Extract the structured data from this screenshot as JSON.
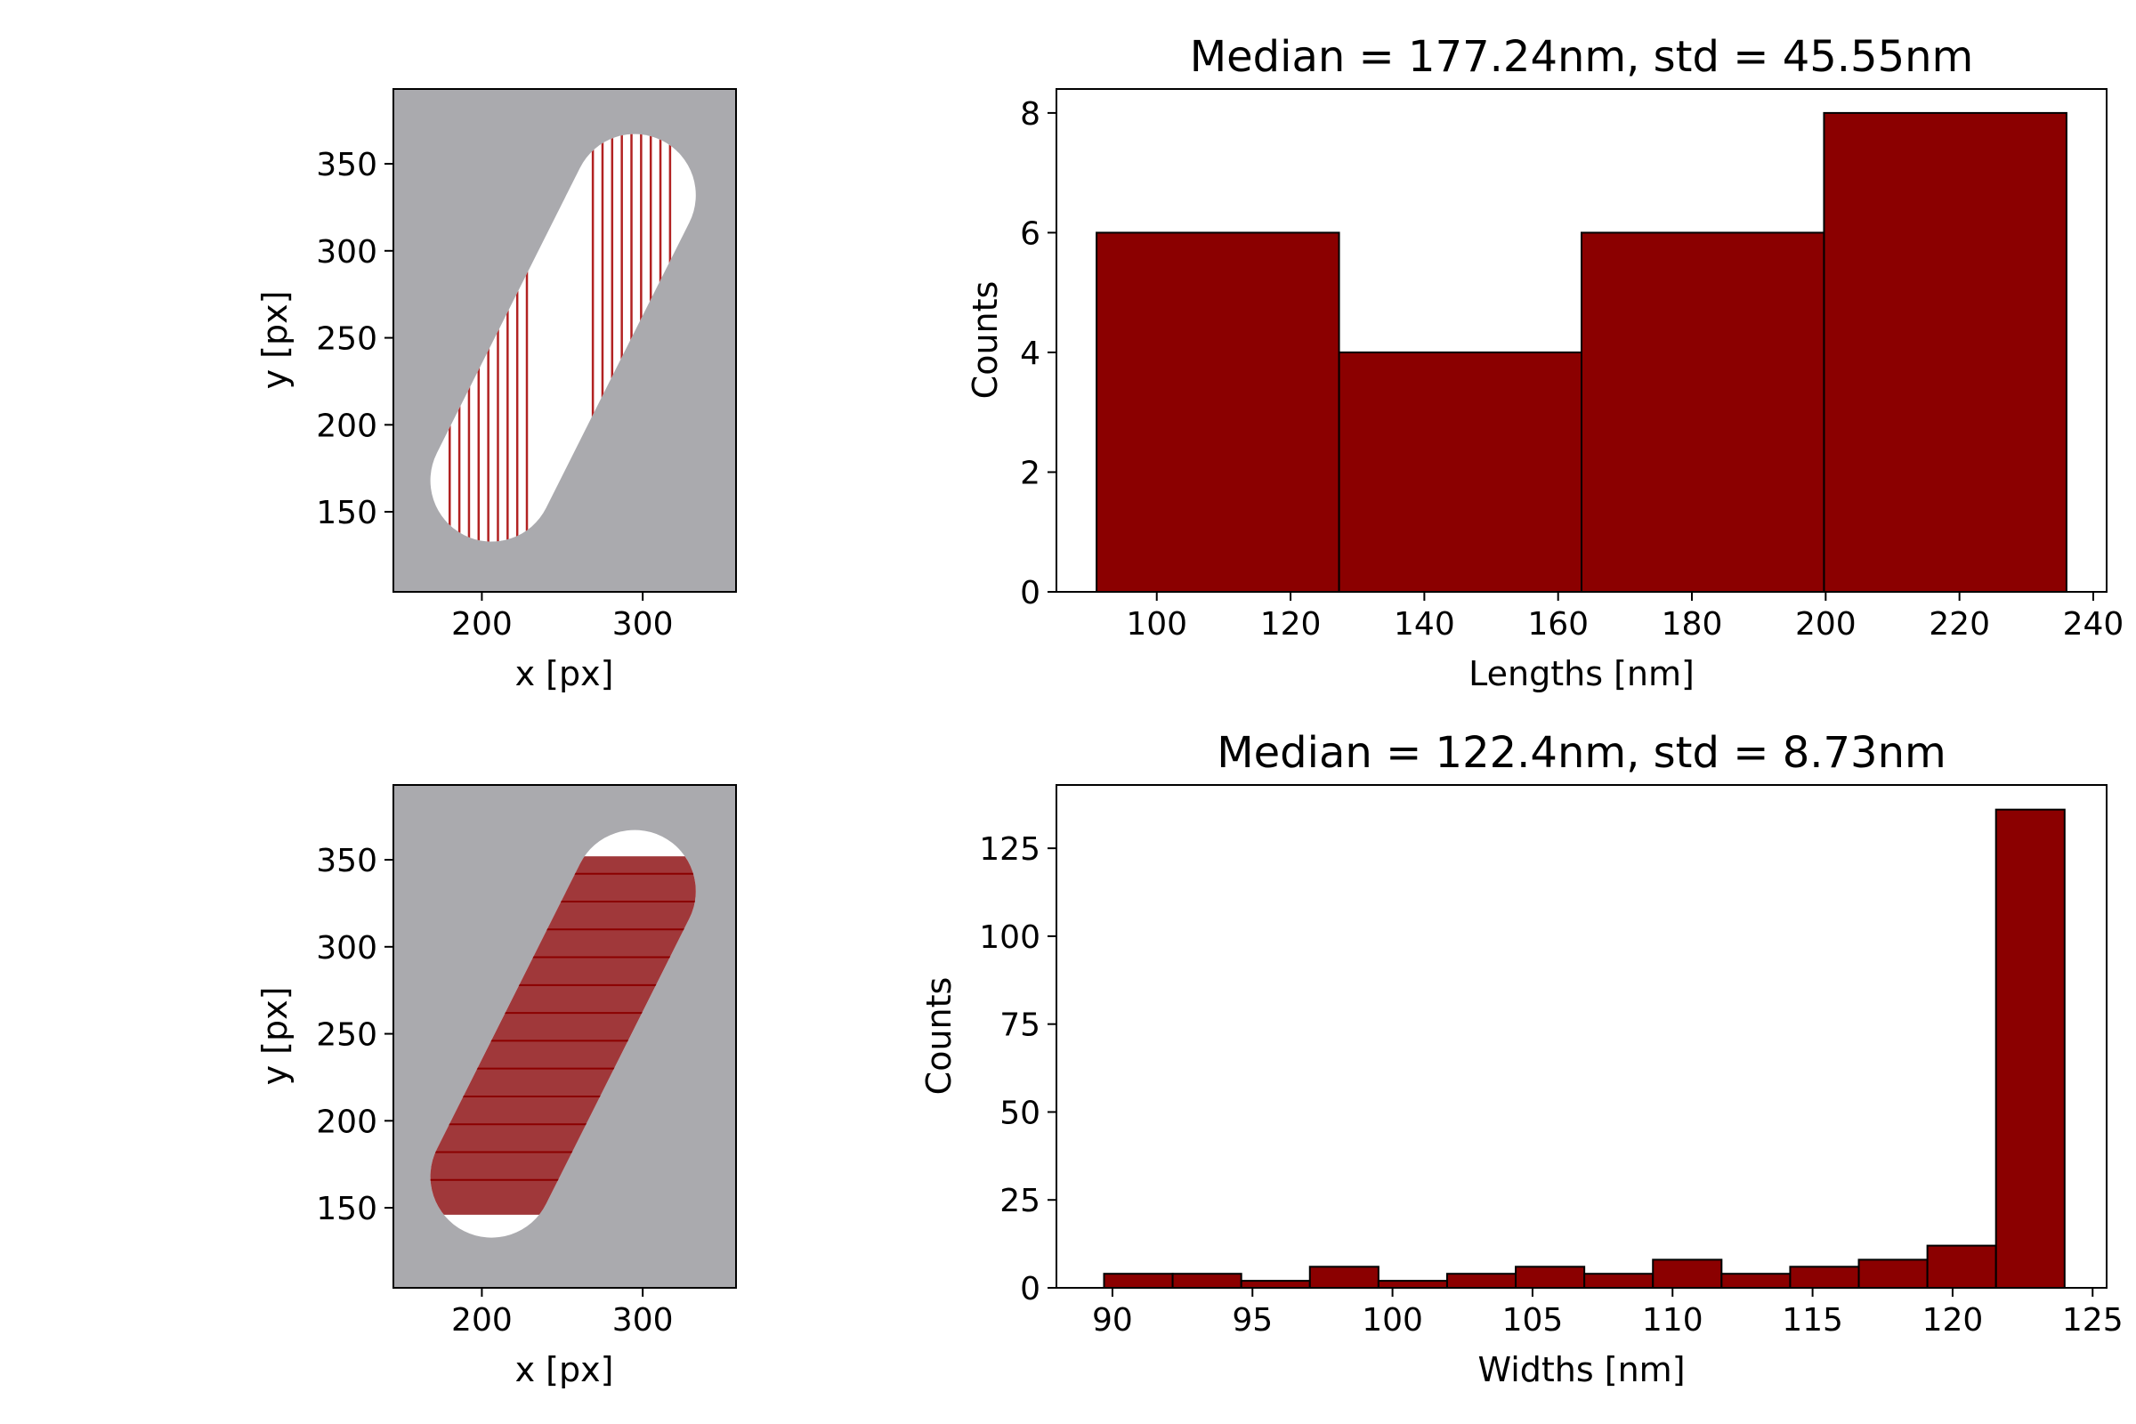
{
  "chart_data": [
    {
      "type": "image",
      "panel": "top-left",
      "xlabel": "x [px]",
      "ylabel": "y [px]",
      "xlim": [
        145,
        358
      ],
      "ylim": [
        104,
        393
      ],
      "xticks": [
        200,
        300
      ],
      "yticks": [
        150,
        200,
        250,
        300,
        350
      ],
      "colors": {
        "background": "#aaaaae",
        "shape": "#ffffff",
        "lines": "#b22222"
      },
      "shape": {
        "kind": "capsule",
        "start": [
          206,
          168
        ],
        "end": [
          295,
          332
        ],
        "radius": 38
      },
      "lines": {
        "orientation": "vertical",
        "left_x": [
          180,
          186,
          192,
          198,
          204,
          210,
          216,
          222,
          228
        ],
        "right_x": [
          269,
          275,
          281,
          287,
          293,
          299,
          305,
          311,
          317
        ]
      }
    },
    {
      "type": "bar",
      "panel": "top-right",
      "title": "Median = 177.24nm, std = 45.55nm",
      "xlabel": "Lengths [nm]",
      "ylabel": "Counts",
      "bin_edges": [
        91,
        127.25,
        163.5,
        199.75,
        236
      ],
      "values": [
        6,
        4,
        6,
        8
      ],
      "xlim": [
        85,
        242
      ],
      "ylim": [
        0,
        8.4
      ],
      "xticks": [
        100,
        120,
        140,
        160,
        180,
        200,
        220,
        240
      ],
      "yticks": [
        0,
        2,
        4,
        6,
        8
      ],
      "color": "#8b0000"
    },
    {
      "type": "image",
      "panel": "bottom-left",
      "xlabel": "x [px]",
      "ylabel": "y [px]",
      "xlim": [
        145,
        358
      ],
      "ylim": [
        104,
        393
      ],
      "xticks": [
        200,
        300
      ],
      "yticks": [
        150,
        200,
        250,
        300,
        350
      ],
      "colors": {
        "background": "#aaaaae",
        "shape": "#ffffff",
        "band": "#a0383a",
        "lines": "#8b0000"
      },
      "shape": {
        "kind": "capsule",
        "start": [
          206,
          168
        ],
        "end": [
          295,
          332
        ],
        "radius": 38
      },
      "band": {
        "y_min": 146,
        "y_max": 352
      },
      "lines": {
        "orientation": "horizontal",
        "y": [
          166,
          182,
          198,
          214,
          230,
          246,
          262,
          278,
          294,
          310,
          326,
          342
        ]
      }
    },
    {
      "type": "bar",
      "panel": "bottom-right",
      "title": "Median = 122.4nm, std = 8.73nm",
      "xlabel": "Widths [nm]",
      "ylabel": "Counts",
      "bin_edges": [
        89.7,
        92.15,
        94.6,
        97.05,
        99.5,
        101.95,
        104.4,
        106.85,
        109.3,
        111.75,
        114.2,
        116.65,
        119.1,
        121.55,
        124.0
      ],
      "values": [
        4,
        4,
        2,
        6,
        2,
        4,
        6,
        4,
        8,
        4,
        6,
        8,
        12,
        136
      ],
      "xlim": [
        88,
        125.5
      ],
      "ylim": [
        0,
        143
      ],
      "xticks": [
        90,
        95,
        100,
        105,
        110,
        115,
        120,
        125
      ],
      "yticks": [
        0,
        25,
        50,
        75,
        100,
        125
      ],
      "color": "#8b0000"
    }
  ]
}
